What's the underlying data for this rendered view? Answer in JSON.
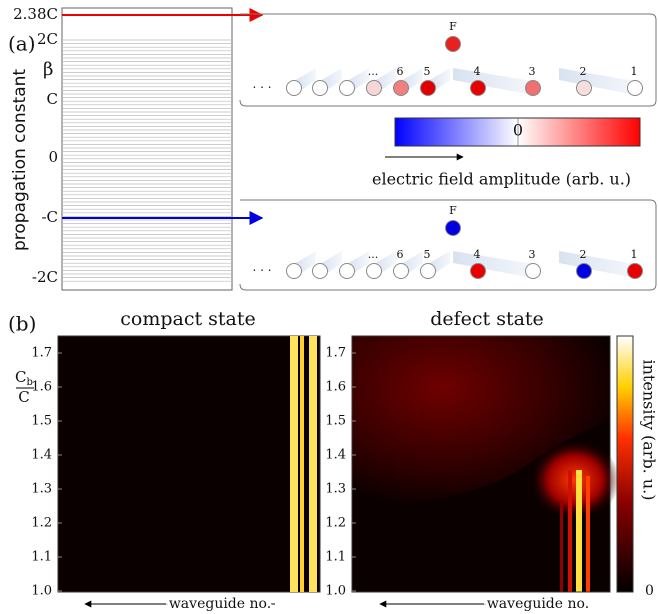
{
  "panel_a": {
    "label": "(a)",
    "spectrum": {
      "axis_label": "propagation constant",
      "beta": "β",
      "ticks": [
        "2.38C",
        "2C",
        "C",
        "0",
        "-C",
        "-2C"
      ]
    },
    "top_state": {
      "defect": "F",
      "waveguides": [
        "...",
        "6",
        "5",
        "4",
        "3",
        "2",
        "1"
      ]
    },
    "bottom_state": {
      "defect": "F",
      "waveguides": [
        "...",
        "6",
        "5",
        "4",
        "3",
        "2",
        "1"
      ]
    },
    "colorbar": {
      "zero": "0",
      "label": "electric field amplitude (arb. u.)"
    },
    "ellipsis": "· · ·"
  },
  "panel_b": {
    "label": "(b)",
    "left_title": "compact state",
    "right_title": "defect state",
    "y_label_num": "C",
    "y_label_sub": "b",
    "y_label_den": "C",
    "yticks": [
      "1.7",
      "1.6",
      "1.5",
      "1.4",
      "1.3",
      "1.2",
      "1.1",
      "1.0"
    ],
    "x_label": "waveguide no.",
    "colorbar_label": "intensity (arb. u.)",
    "colorbar_zero": "0"
  }
}
